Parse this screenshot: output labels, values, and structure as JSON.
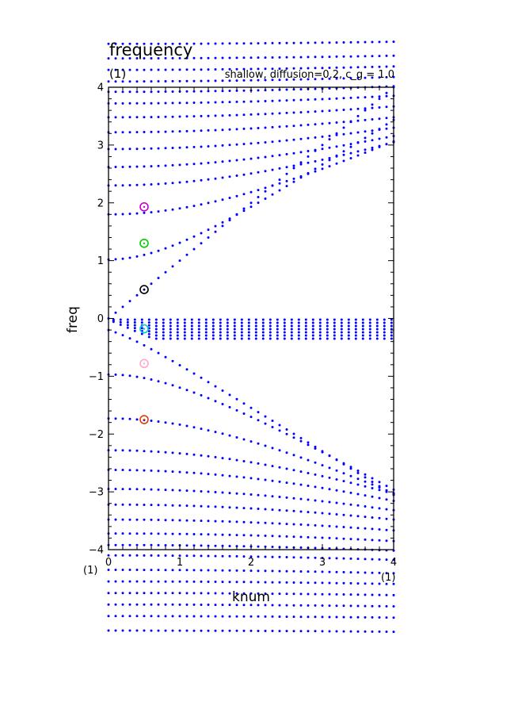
{
  "chart_data": {
    "type": "scatter",
    "title": "frequency",
    "corner_label": "(1)",
    "subtitle": "shallow, diffusion=0.2, c_g = 1.0",
    "xlabel": "knum",
    "ylabel": "freq",
    "x_unit_label": "(1)",
    "y_unit_label": "(1)",
    "xlim": [
      0,
      4
    ],
    "ylim": [
      -4,
      4
    ],
    "x_ticks": [
      "0",
      "1",
      "2",
      "3",
      "4"
    ],
    "y_ticks": [
      "−4",
      "−3",
      "−2",
      "−1",
      "0",
      "1",
      "2",
      "3",
      "4"
    ],
    "grid": false,
    "point_color": "#0000ff",
    "marker_style": "dotted curves",
    "series": [
      {
        "branch": "slow_cluster",
        "omega0": 0.0,
        "c": 0.0
      },
      {
        "branch": "kelvin",
        "omega0": 0.0,
        "c": 1.0,
        "slope": 1.0
      },
      {
        "branch": "mixed",
        "omega0": -0.2,
        "c": 0.76
      },
      {
        "branch": "gravity_pos",
        "omega0": 1.02,
        "c": 0.82
      },
      {
        "branch": "gravity_pos",
        "omega0": 1.8,
        "c": 0.62
      },
      {
        "branch": "gravity_pos",
        "omega0": 2.3,
        "c": 0.5
      },
      {
        "branch": "gravity_pos",
        "omega0": 2.62,
        "c": 0.44
      },
      {
        "branch": "gravity_pos",
        "omega0": 2.93,
        "c": 0.38
      },
      {
        "branch": "gravity_pos",
        "omega0": 3.22,
        "c": 0.33
      },
      {
        "branch": "gravity_pos",
        "omega0": 3.48,
        "c": 0.29
      },
      {
        "branch": "gravity_pos",
        "omega0": 3.72,
        "c": 0.25
      },
      {
        "branch": "gravity_pos",
        "omega0": 3.92,
        "c": 0.22
      },
      {
        "branch": "gravity_neg",
        "omega0": -0.97,
        "c": 0.7
      },
      {
        "branch": "gravity_neg",
        "omega0": -1.73,
        "c": 0.62
      },
      {
        "branch": "gravity_neg",
        "omega0": -2.28,
        "c": 0.5
      },
      {
        "branch": "gravity_neg",
        "omega0": -2.62,
        "c": 0.44
      },
      {
        "branch": "gravity_neg",
        "omega0": -2.95,
        "c": 0.38
      },
      {
        "branch": "gravity_neg",
        "omega0": -3.22,
        "c": 0.33
      },
      {
        "branch": "gravity_neg",
        "omega0": -3.48,
        "c": 0.29
      },
      {
        "branch": "gravity_neg",
        "omega0": -3.72,
        "c": 0.25
      },
      {
        "branch": "gravity_neg",
        "omega0": -3.92,
        "c": 0.22
      },
      {
        "branch": "gravity_pos",
        "omega0": 4.1,
        "c": 0.2
      },
      {
        "branch": "gravity_pos",
        "omega0": 4.3,
        "c": 0.18
      },
      {
        "branch": "gravity_pos",
        "omega0": 4.5,
        "c": 0.16
      },
      {
        "branch": "gravity_pos",
        "omega0": 4.75,
        "c": 0.15
      },
      {
        "branch": "gravity_neg",
        "omega0": -4.1,
        "c": 0.2
      },
      {
        "branch": "gravity_neg",
        "omega0": -4.35,
        "c": 0.18
      },
      {
        "branch": "gravity_neg",
        "omega0": -4.55,
        "c": 0.16
      },
      {
        "branch": "gravity_neg",
        "omega0": -4.75,
        "c": 0.15
      },
      {
        "branch": "gravity_neg",
        "omega0": -4.95,
        "c": 0.14
      },
      {
        "branch": "gravity_neg",
        "omega0": -5.15,
        "c": 0.13
      },
      {
        "branch": "gravity_neg",
        "omega0": -5.4,
        "c": 0.12
      }
    ],
    "highlighted_points": [
      {
        "x": 0.5,
        "y": 1.93,
        "color": "#cc00cc"
      },
      {
        "x": 0.5,
        "y": 1.3,
        "color": "#00cc00"
      },
      {
        "x": 0.5,
        "y": 0.5,
        "color": "#000000"
      },
      {
        "x": 0.5,
        "y": -0.18,
        "color": "#00cccc"
      },
      {
        "x": 0.5,
        "y": -0.78,
        "color": "#ffaacc"
      },
      {
        "x": 0.5,
        "y": -1.75,
        "color": "#e04000"
      }
    ]
  }
}
